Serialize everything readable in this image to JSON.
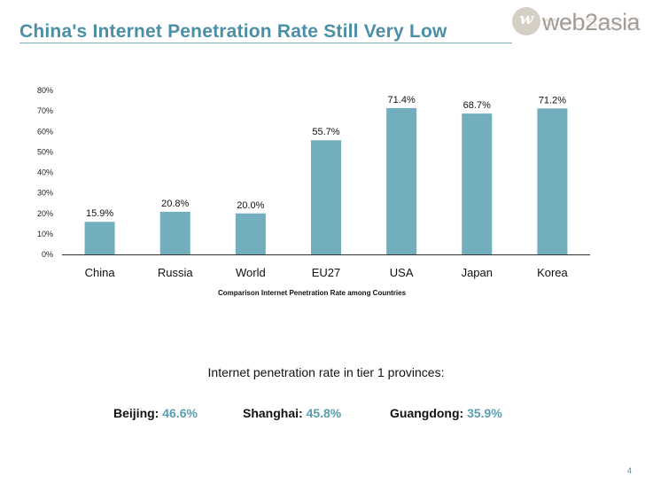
{
  "header": {
    "title": "China's Internet Penetration Rate Still Very Low"
  },
  "logo": {
    "text": "web2asia",
    "mark": "w"
  },
  "chart_data": {
    "type": "bar",
    "title": "",
    "caption": "Comparison Internet Penetration Rate among Countries",
    "categories": [
      "China",
      "Russia",
      "World",
      "EU27",
      "USA",
      "Japan",
      "Korea"
    ],
    "values": [
      15.9,
      20.8,
      20.0,
      55.7,
      71.4,
      68.7,
      71.2
    ],
    "data_labels": [
      "15.9%",
      "20.8%",
      "20.0%",
      "55.7%",
      "71.4%",
      "68.7%",
      "71.2%"
    ],
    "y_ticks": [
      "0%",
      "10%",
      "20%",
      "30%",
      "40%",
      "50%",
      "60%",
      "70%",
      "80%"
    ],
    "ylim": [
      0,
      80
    ],
    "xlabel": "",
    "ylabel": "",
    "grid": false,
    "bar_color": "#72aebe"
  },
  "provinces": {
    "heading": "Internet penetration rate in tier 1 provinces:",
    "items": [
      {
        "name": "Beijing:",
        "value": "46.6%"
      },
      {
        "name": "Shanghai:",
        "value": "45.8%"
      },
      {
        "name": "Guangdong:",
        "value": "35.9%"
      }
    ]
  },
  "footer": {
    "page_number": "4"
  }
}
